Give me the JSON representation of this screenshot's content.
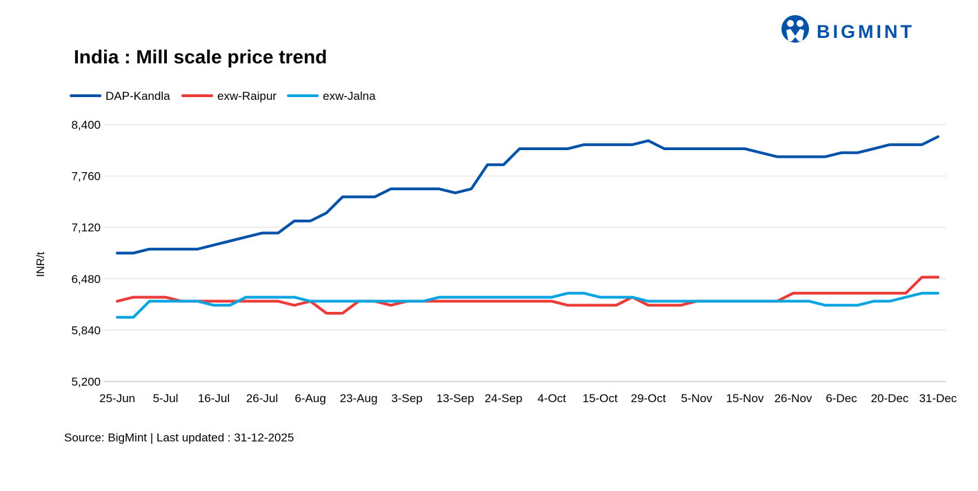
{
  "logo": {
    "text": "BIGMINT"
  },
  "colors": {
    "DAP-Kandla": "#0452a8",
    "exw-Raipur": "#ec3a37",
    "exw-Jalna": "#0aa5e0",
    "grid": "#e8e8e8",
    "logo": "#0452a8"
  },
  "source": "Source: BigMint | Last updated : 31-12-2025",
  "chart_data": {
    "type": "line",
    "title": "India : Mill scale price trend",
    "xlabel": "",
    "ylabel": "INR/t",
    "ylim": [
      5200,
      8400
    ],
    "yticks": [
      5200,
      5840,
      6480,
      7120,
      7760,
      8400
    ],
    "ytick_labels": [
      "5,200",
      "5,840",
      "6,480",
      "7,120",
      "7,760",
      "8,400"
    ],
    "grid": true,
    "legend_position": "top-left",
    "num_points": 52,
    "x_ticks": [
      {
        "index": 0,
        "label": "25-Jun"
      },
      {
        "index": 3,
        "label": "5-Jul"
      },
      {
        "index": 6,
        "label": "16-Jul"
      },
      {
        "index": 9,
        "label": "26-Jul"
      },
      {
        "index": 12,
        "label": "6-Aug"
      },
      {
        "index": 15,
        "label": "23-Aug"
      },
      {
        "index": 18,
        "label": "3-Sep"
      },
      {
        "index": 21,
        "label": "13-Sep"
      },
      {
        "index": 24,
        "label": "24-Sep"
      },
      {
        "index": 27,
        "label": "4-Oct"
      },
      {
        "index": 30,
        "label": "15-Oct"
      },
      {
        "index": 33,
        "label": "29-Oct"
      },
      {
        "index": 36,
        "label": "5-Nov"
      },
      {
        "index": 39,
        "label": "15-Nov"
      },
      {
        "index": 42,
        "label": "26-Nov"
      },
      {
        "index": 45,
        "label": "6-Dec"
      },
      {
        "index": 48,
        "label": "20-Dec"
      },
      {
        "index": 51,
        "label": "31-Dec"
      }
    ],
    "series": [
      {
        "name": "DAP-Kandla",
        "values": [
          6800,
          6800,
          6850,
          6850,
          6850,
          6850,
          6900,
          6950,
          7000,
          7050,
          7050,
          7200,
          7200,
          7300,
          7500,
          7500,
          7500,
          7600,
          7600,
          7600,
          7600,
          7550,
          7600,
          7900,
          7900,
          8100,
          8100,
          8100,
          8100,
          8150,
          8150,
          8150,
          8150,
          8200,
          8100,
          8100,
          8100,
          8100,
          8100,
          8100,
          8050,
          8000,
          8000,
          8000,
          8000,
          8050,
          8050,
          8100,
          8150,
          8150,
          8150,
          8250
        ]
      },
      {
        "name": "exw-Raipur",
        "values": [
          6200,
          6250,
          6250,
          6250,
          6200,
          6200,
          6200,
          6200,
          6200,
          6200,
          6200,
          6150,
          6200,
          6050,
          6050,
          6200,
          6200,
          6150,
          6200,
          6200,
          6200,
          6200,
          6200,
          6200,
          6200,
          6200,
          6200,
          6200,
          6150,
          6150,
          6150,
          6150,
          6250,
          6150,
          6150,
          6150,
          6200,
          6200,
          6200,
          6200,
          6200,
          6200,
          6300,
          6300,
          6300,
          6300,
          6300,
          6300,
          6300,
          6300,
          6500,
          6500
        ]
      },
      {
        "name": "exw-Jalna",
        "values": [
          6000,
          6000,
          6200,
          6200,
          6200,
          6200,
          6150,
          6150,
          6250,
          6250,
          6250,
          6250,
          6200,
          6200,
          6200,
          6200,
          6200,
          6200,
          6200,
          6200,
          6250,
          6250,
          6250,
          6250,
          6250,
          6250,
          6250,
          6250,
          6300,
          6300,
          6250,
          6250,
          6250,
          6200,
          6200,
          6200,
          6200,
          6200,
          6200,
          6200,
          6200,
          6200,
          6200,
          6200,
          6150,
          6150,
          6150,
          6200,
          6200,
          6250,
          6300,
          6300
        ]
      }
    ]
  }
}
